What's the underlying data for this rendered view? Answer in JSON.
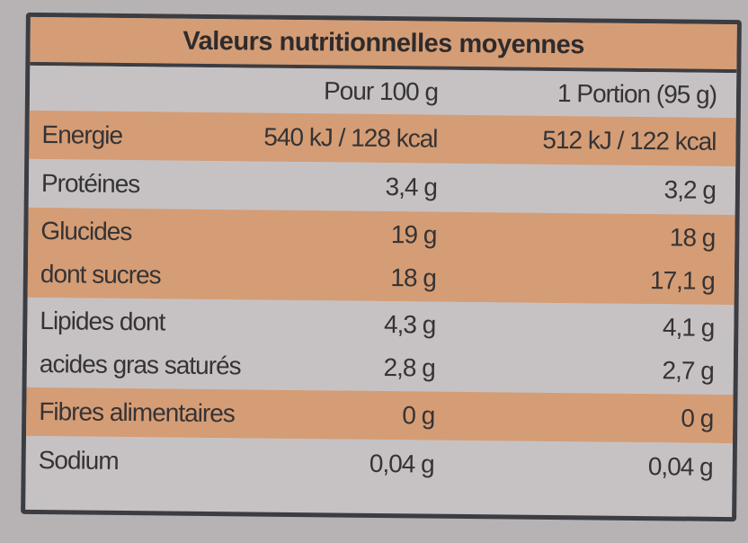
{
  "title": "Valeurs nutritionnelles moyennes",
  "header": [
    "Pour 100 g",
    "1 Portion (95 g)"
  ],
  "bands": [
    {
      "rows": [
        [
          "Energie",
          "540 kJ / 128 kcal",
          "512 kJ / 122 kcal"
        ]
      ]
    },
    {
      "rows": [
        [
          "Protéines",
          "3,4 g",
          "3,2 g"
        ]
      ]
    },
    {
      "rows": [
        [
          "Glucides",
          "19 g",
          "18 g"
        ],
        [
          "dont sucres",
          "18 g",
          "17,1 g"
        ]
      ]
    },
    {
      "rows": [
        [
          "Lipides dont",
          "4,3 g",
          "4,1 g"
        ],
        [
          "acides gras saturés",
          "2,8 g",
          "2,7 g"
        ]
      ]
    },
    {
      "rows": [
        [
          "Fibres alimentaires",
          "0 g",
          "0 g"
        ]
      ]
    },
    {
      "rows": [
        [
          "Sodium",
          "0,04 g",
          "0,04 g"
        ]
      ]
    }
  ]
}
